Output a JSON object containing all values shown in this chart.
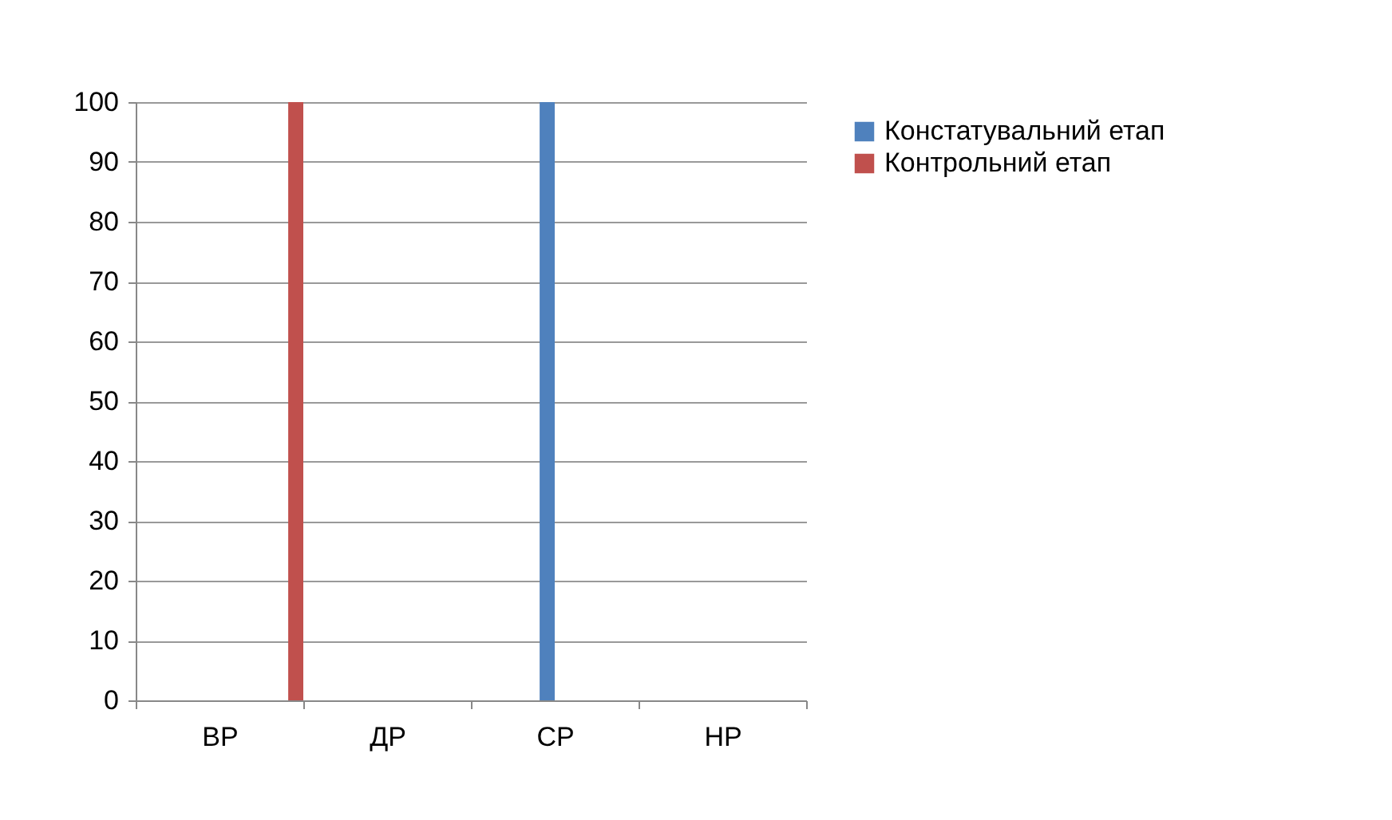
{
  "chart_data": {
    "type": "bar",
    "categories": [
      "ВР",
      "ДР",
      "СР",
      "НР"
    ],
    "series": [
      {
        "name": "Констатувальний етап",
        "color": "#4f81bd",
        "values": [
          0,
          0,
          100,
          0
        ]
      },
      {
        "name": "Контрольний етап",
        "color": "#c0504d",
        "values": [
          100,
          0,
          0,
          0
        ]
      }
    ],
    "ylim": [
      0,
      100
    ],
    "yticks": [
      0,
      10,
      20,
      30,
      40,
      50,
      60,
      70,
      80,
      90,
      100
    ],
    "grid": "y",
    "legend": "right"
  }
}
